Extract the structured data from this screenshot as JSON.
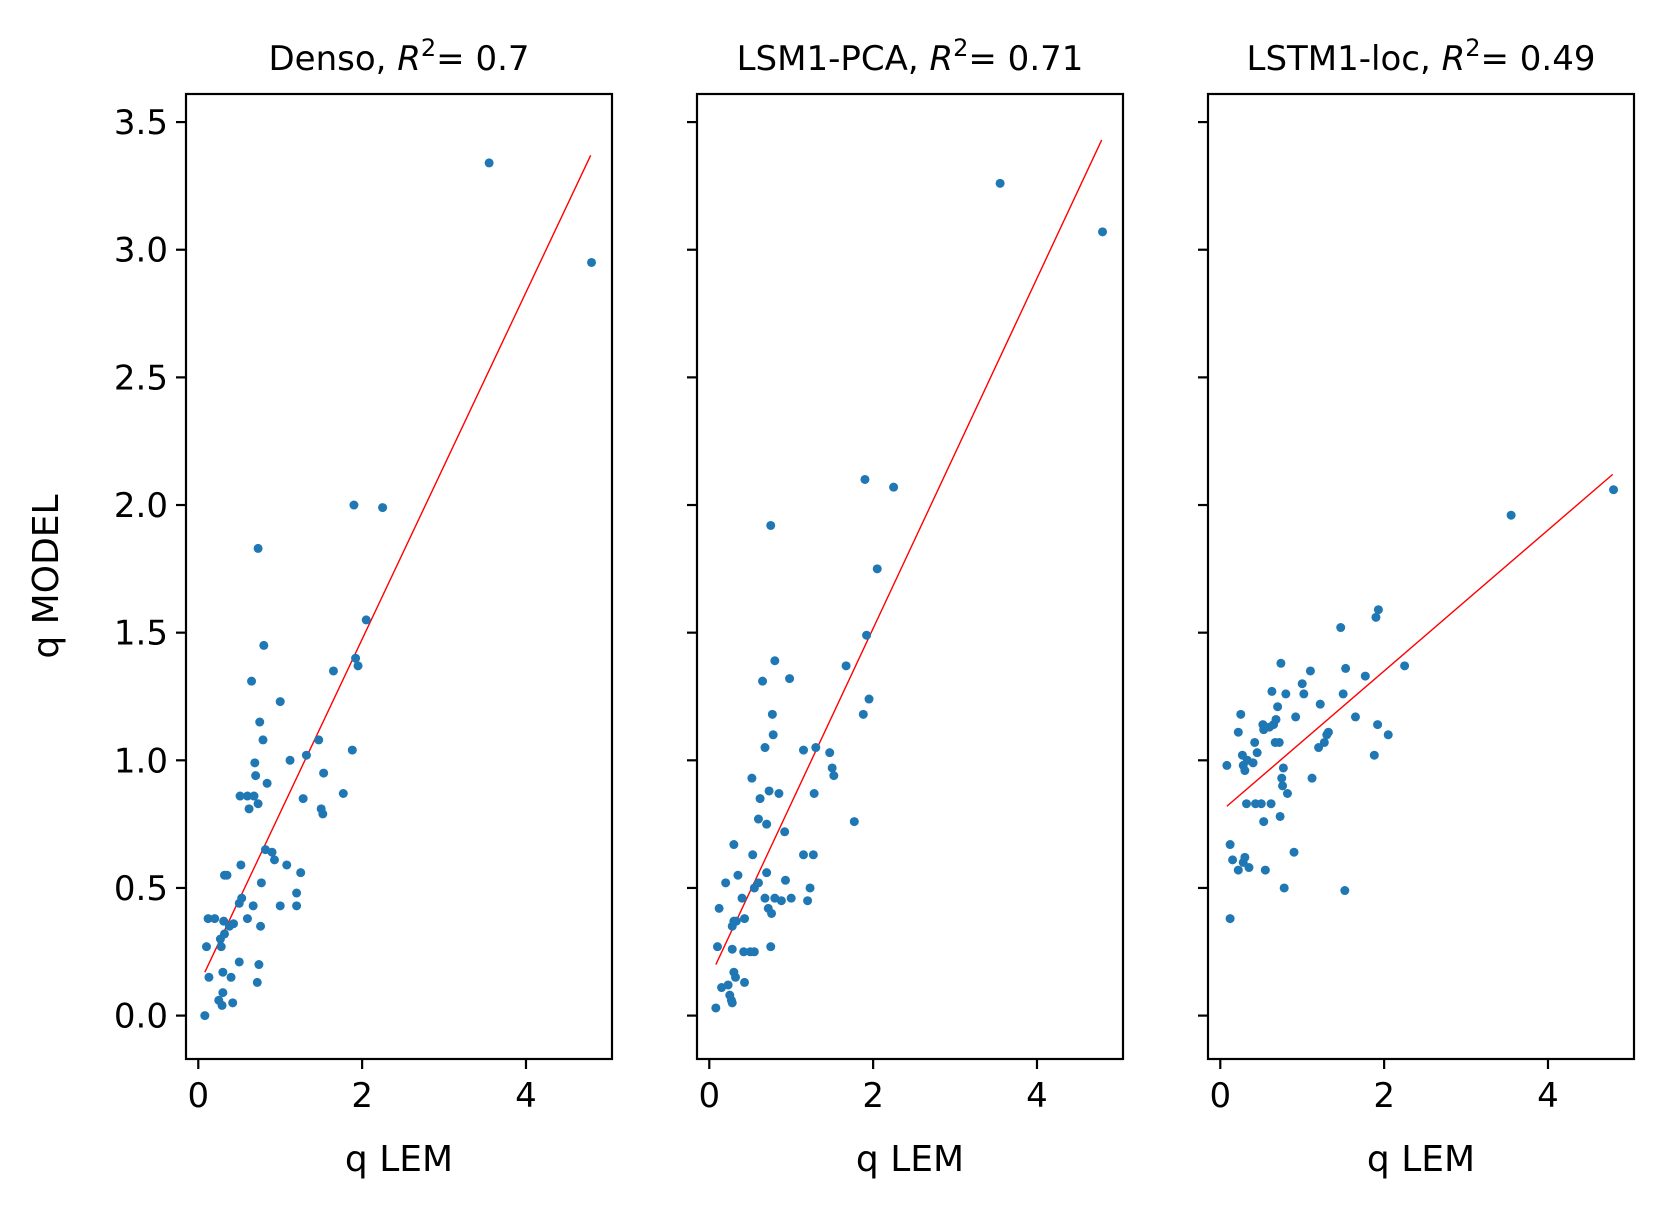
{
  "chart_data": [
    {
      "type": "scatter",
      "title_prefix": "Denso, ",
      "r2": "0.7",
      "title_spacing": "",
      "xlabel": "q LEM",
      "ylabel": "q MODEL",
      "xlim": [
        -0.15,
        5.05
      ],
      "ylim": [
        -0.17,
        3.61
      ],
      "xticks": [
        0,
        2,
        4
      ],
      "yticks": [
        "0.0",
        "0.5",
        "1.0",
        "1.5",
        "2.0",
        "2.5",
        "3.0",
        "3.5"
      ],
      "point_color": "#1f77b4",
      "fit_color": "#ff0000",
      "fit_line": {
        "x": [
          0.08,
          4.79
        ],
        "y": [
          0.17,
          3.37
        ]
      },
      "points": [
        [
          0.08,
          0.0
        ],
        [
          0.1,
          0.27
        ],
        [
          0.12,
          0.38
        ],
        [
          0.13,
          0.15
        ],
        [
          0.2,
          0.38
        ],
        [
          0.25,
          0.06
        ],
        [
          0.27,
          0.3
        ],
        [
          0.28,
          0.27
        ],
        [
          0.29,
          0.04
        ],
        [
          0.3,
          0.09
        ],
        [
          0.3,
          0.17
        ],
        [
          0.31,
          0.37
        ],
        [
          0.32,
          0.32
        ],
        [
          0.32,
          0.55
        ],
        [
          0.35,
          0.55
        ],
        [
          0.38,
          0.35
        ],
        [
          0.4,
          0.15
        ],
        [
          0.42,
          0.05
        ],
        [
          0.43,
          0.36
        ],
        [
          0.5,
          0.21
        ],
        [
          0.5,
          0.44
        ],
        [
          0.51,
          0.86
        ],
        [
          0.52,
          0.59
        ],
        [
          0.53,
          0.46
        ],
        [
          0.6,
          0.86
        ],
        [
          0.6,
          0.38
        ],
        [
          0.62,
          0.81
        ],
        [
          0.65,
          1.31
        ],
        [
          0.67,
          0.43
        ],
        [
          0.68,
          0.86
        ],
        [
          0.69,
          0.99
        ],
        [
          0.7,
          0.94
        ],
        [
          0.72,
          0.13
        ],
        [
          0.73,
          1.83
        ],
        [
          0.73,
          0.83
        ],
        [
          0.74,
          0.2
        ],
        [
          0.75,
          1.15
        ],
        [
          0.76,
          0.35
        ],
        [
          0.77,
          0.52
        ],
        [
          0.79,
          1.08
        ],
        [
          0.8,
          1.45
        ],
        [
          0.82,
          0.65
        ],
        [
          0.84,
          0.91
        ],
        [
          0.9,
          0.64
        ],
        [
          0.93,
          0.61
        ],
        [
          1.0,
          1.23
        ],
        [
          1.0,
          0.43
        ],
        [
          1.08,
          0.59
        ],
        [
          1.12,
          1.0
        ],
        [
          1.2,
          0.48
        ],
        [
          1.2,
          0.43
        ],
        [
          1.25,
          0.56
        ],
        [
          1.28,
          0.85
        ],
        [
          1.32,
          1.02
        ],
        [
          1.47,
          1.08
        ],
        [
          1.5,
          0.81
        ],
        [
          1.52,
          0.79
        ],
        [
          1.53,
          0.95
        ],
        [
          1.65,
          1.35
        ],
        [
          1.77,
          0.87
        ],
        [
          1.88,
          1.04
        ],
        [
          1.9,
          2.0
        ],
        [
          1.92,
          1.4
        ],
        [
          1.95,
          1.37
        ],
        [
          2.05,
          1.55
        ],
        [
          2.25,
          1.99
        ],
        [
          3.55,
          3.34
        ],
        [
          4.8,
          2.95
        ]
      ]
    },
    {
      "type": "scatter",
      "title_prefix": "LSM1-PCA, ",
      "r2": "0.71",
      "title_spacing": " ",
      "xlabel": "q LEM",
      "ylabel": "",
      "xlim": [
        -0.15,
        5.05
      ],
      "ylim": [
        -0.17,
        3.61
      ],
      "xticks": [
        0,
        2,
        4
      ],
      "yticks": [],
      "point_color": "#1f77b4",
      "fit_color": "#ff0000",
      "fit_line": {
        "x": [
          0.08,
          4.79
        ],
        "y": [
          0.2,
          3.43
        ]
      },
      "points": [
        [
          0.08,
          0.03
        ],
        [
          0.1,
          0.27
        ],
        [
          0.12,
          0.42
        ],
        [
          0.15,
          0.11
        ],
        [
          0.2,
          0.52
        ],
        [
          0.23,
          0.12
        ],
        [
          0.25,
          0.08
        ],
        [
          0.27,
          0.06
        ],
        [
          0.28,
          0.26
        ],
        [
          0.28,
          0.05
        ],
        [
          0.28,
          0.35
        ],
        [
          0.3,
          0.37
        ],
        [
          0.3,
          0.17
        ],
        [
          0.3,
          0.67
        ],
        [
          0.32,
          0.15
        ],
        [
          0.33,
          0.37
        ],
        [
          0.35,
          0.55
        ],
        [
          0.4,
          0.46
        ],
        [
          0.42,
          0.25
        ],
        [
          0.43,
          0.38
        ],
        [
          0.43,
          0.13
        ],
        [
          0.5,
          0.25
        ],
        [
          0.52,
          0.93
        ],
        [
          0.53,
          0.63
        ],
        [
          0.55,
          0.5
        ],
        [
          0.55,
          0.25
        ],
        [
          0.6,
          0.52
        ],
        [
          0.6,
          0.77
        ],
        [
          0.62,
          0.85
        ],
        [
          0.65,
          1.31
        ],
        [
          0.68,
          0.46
        ],
        [
          0.68,
          1.05
        ],
        [
          0.7,
          0.75
        ],
        [
          0.7,
          0.56
        ],
        [
          0.72,
          0.42
        ],
        [
          0.73,
          0.88
        ],
        [
          0.75,
          0.27
        ],
        [
          0.75,
          1.92
        ],
        [
          0.76,
          0.4
        ],
        [
          0.77,
          1.18
        ],
        [
          0.78,
          1.1
        ],
        [
          0.8,
          1.39
        ],
        [
          0.8,
          0.46
        ],
        [
          0.85,
          0.87
        ],
        [
          0.88,
          0.45
        ],
        [
          0.92,
          0.72
        ],
        [
          0.93,
          0.53
        ],
        [
          0.98,
          1.32
        ],
        [
          1.0,
          0.46
        ],
        [
          1.15,
          1.04
        ],
        [
          1.15,
          0.63
        ],
        [
          1.2,
          0.45
        ],
        [
          1.23,
          0.5
        ],
        [
          1.27,
          0.63
        ],
        [
          1.28,
          0.87
        ],
        [
          1.3,
          1.05
        ],
        [
          1.47,
          1.03
        ],
        [
          1.5,
          0.97
        ],
        [
          1.52,
          0.94
        ],
        [
          1.67,
          1.37
        ],
        [
          1.77,
          0.76
        ],
        [
          1.88,
          1.18
        ],
        [
          1.9,
          2.1
        ],
        [
          1.92,
          1.49
        ],
        [
          1.95,
          1.24
        ],
        [
          2.05,
          1.75
        ],
        [
          2.25,
          2.07
        ],
        [
          3.55,
          3.26
        ],
        [
          4.8,
          3.07
        ]
      ]
    },
    {
      "type": "scatter",
      "title_prefix": "LSTM1-loc, ",
      "r2": "0.49",
      "title_spacing": "",
      "xlabel": "q LEM",
      "ylabel": "",
      "xlim": [
        -0.15,
        5.05
      ],
      "ylim": [
        -0.17,
        3.61
      ],
      "xticks": [
        0,
        2,
        4
      ],
      "yticks": [],
      "point_color": "#1f77b4",
      "fit_color": "#ff0000",
      "fit_line": {
        "x": [
          0.08,
          4.79
        ],
        "y": [
          0.82,
          2.12
        ]
      },
      "points": [
        [
          0.08,
          0.98
        ],
        [
          0.12,
          0.38
        ],
        [
          0.12,
          0.67
        ],
        [
          0.15,
          0.61
        ],
        [
          0.22,
          1.11
        ],
        [
          0.22,
          0.57
        ],
        [
          0.25,
          1.18
        ],
        [
          0.27,
          1.02
        ],
        [
          0.28,
          0.98
        ],
        [
          0.28,
          0.6
        ],
        [
          0.3,
          0.96
        ],
        [
          0.3,
          0.62
        ],
        [
          0.32,
          0.83
        ],
        [
          0.33,
          1.0
        ],
        [
          0.35,
          0.58
        ],
        [
          0.4,
          0.99
        ],
        [
          0.42,
          1.07
        ],
        [
          0.43,
          0.83
        ],
        [
          0.45,
          1.03
        ],
        [
          0.5,
          0.83
        ],
        [
          0.52,
          1.14
        ],
        [
          0.53,
          1.12
        ],
        [
          0.53,
          0.76
        ],
        [
          0.55,
          0.57
        ],
        [
          0.6,
          1.13
        ],
        [
          0.62,
          0.83
        ],
        [
          0.63,
          1.27
        ],
        [
          0.65,
          1.14
        ],
        [
          0.67,
          1.07
        ],
        [
          0.68,
          1.16
        ],
        [
          0.7,
          1.21
        ],
        [
          0.72,
          1.07
        ],
        [
          0.73,
          0.78
        ],
        [
          0.74,
          1.38
        ],
        [
          0.75,
          0.93
        ],
        [
          0.76,
          0.9
        ],
        [
          0.77,
          0.97
        ],
        [
          0.78,
          0.5
        ],
        [
          0.8,
          1.26
        ],
        [
          0.82,
          0.87
        ],
        [
          0.9,
          0.64
        ],
        [
          0.92,
          1.17
        ],
        [
          1.0,
          1.3
        ],
        [
          1.02,
          1.26
        ],
        [
          1.1,
          1.35
        ],
        [
          1.12,
          0.93
        ],
        [
          1.2,
          1.05
        ],
        [
          1.22,
          1.22
        ],
        [
          1.27,
          1.07
        ],
        [
          1.3,
          1.1
        ],
        [
          1.32,
          1.11
        ],
        [
          1.47,
          1.52
        ],
        [
          1.5,
          1.26
        ],
        [
          1.52,
          0.49
        ],
        [
          1.53,
          1.36
        ],
        [
          1.65,
          1.17
        ],
        [
          1.77,
          1.33
        ],
        [
          1.88,
          1.02
        ],
        [
          1.9,
          1.56
        ],
        [
          1.92,
          1.14
        ],
        [
          1.93,
          1.59
        ],
        [
          2.05,
          1.1
        ],
        [
          2.25,
          1.37
        ],
        [
          3.55,
          1.96
        ],
        [
          4.8,
          2.06
        ]
      ]
    }
  ]
}
